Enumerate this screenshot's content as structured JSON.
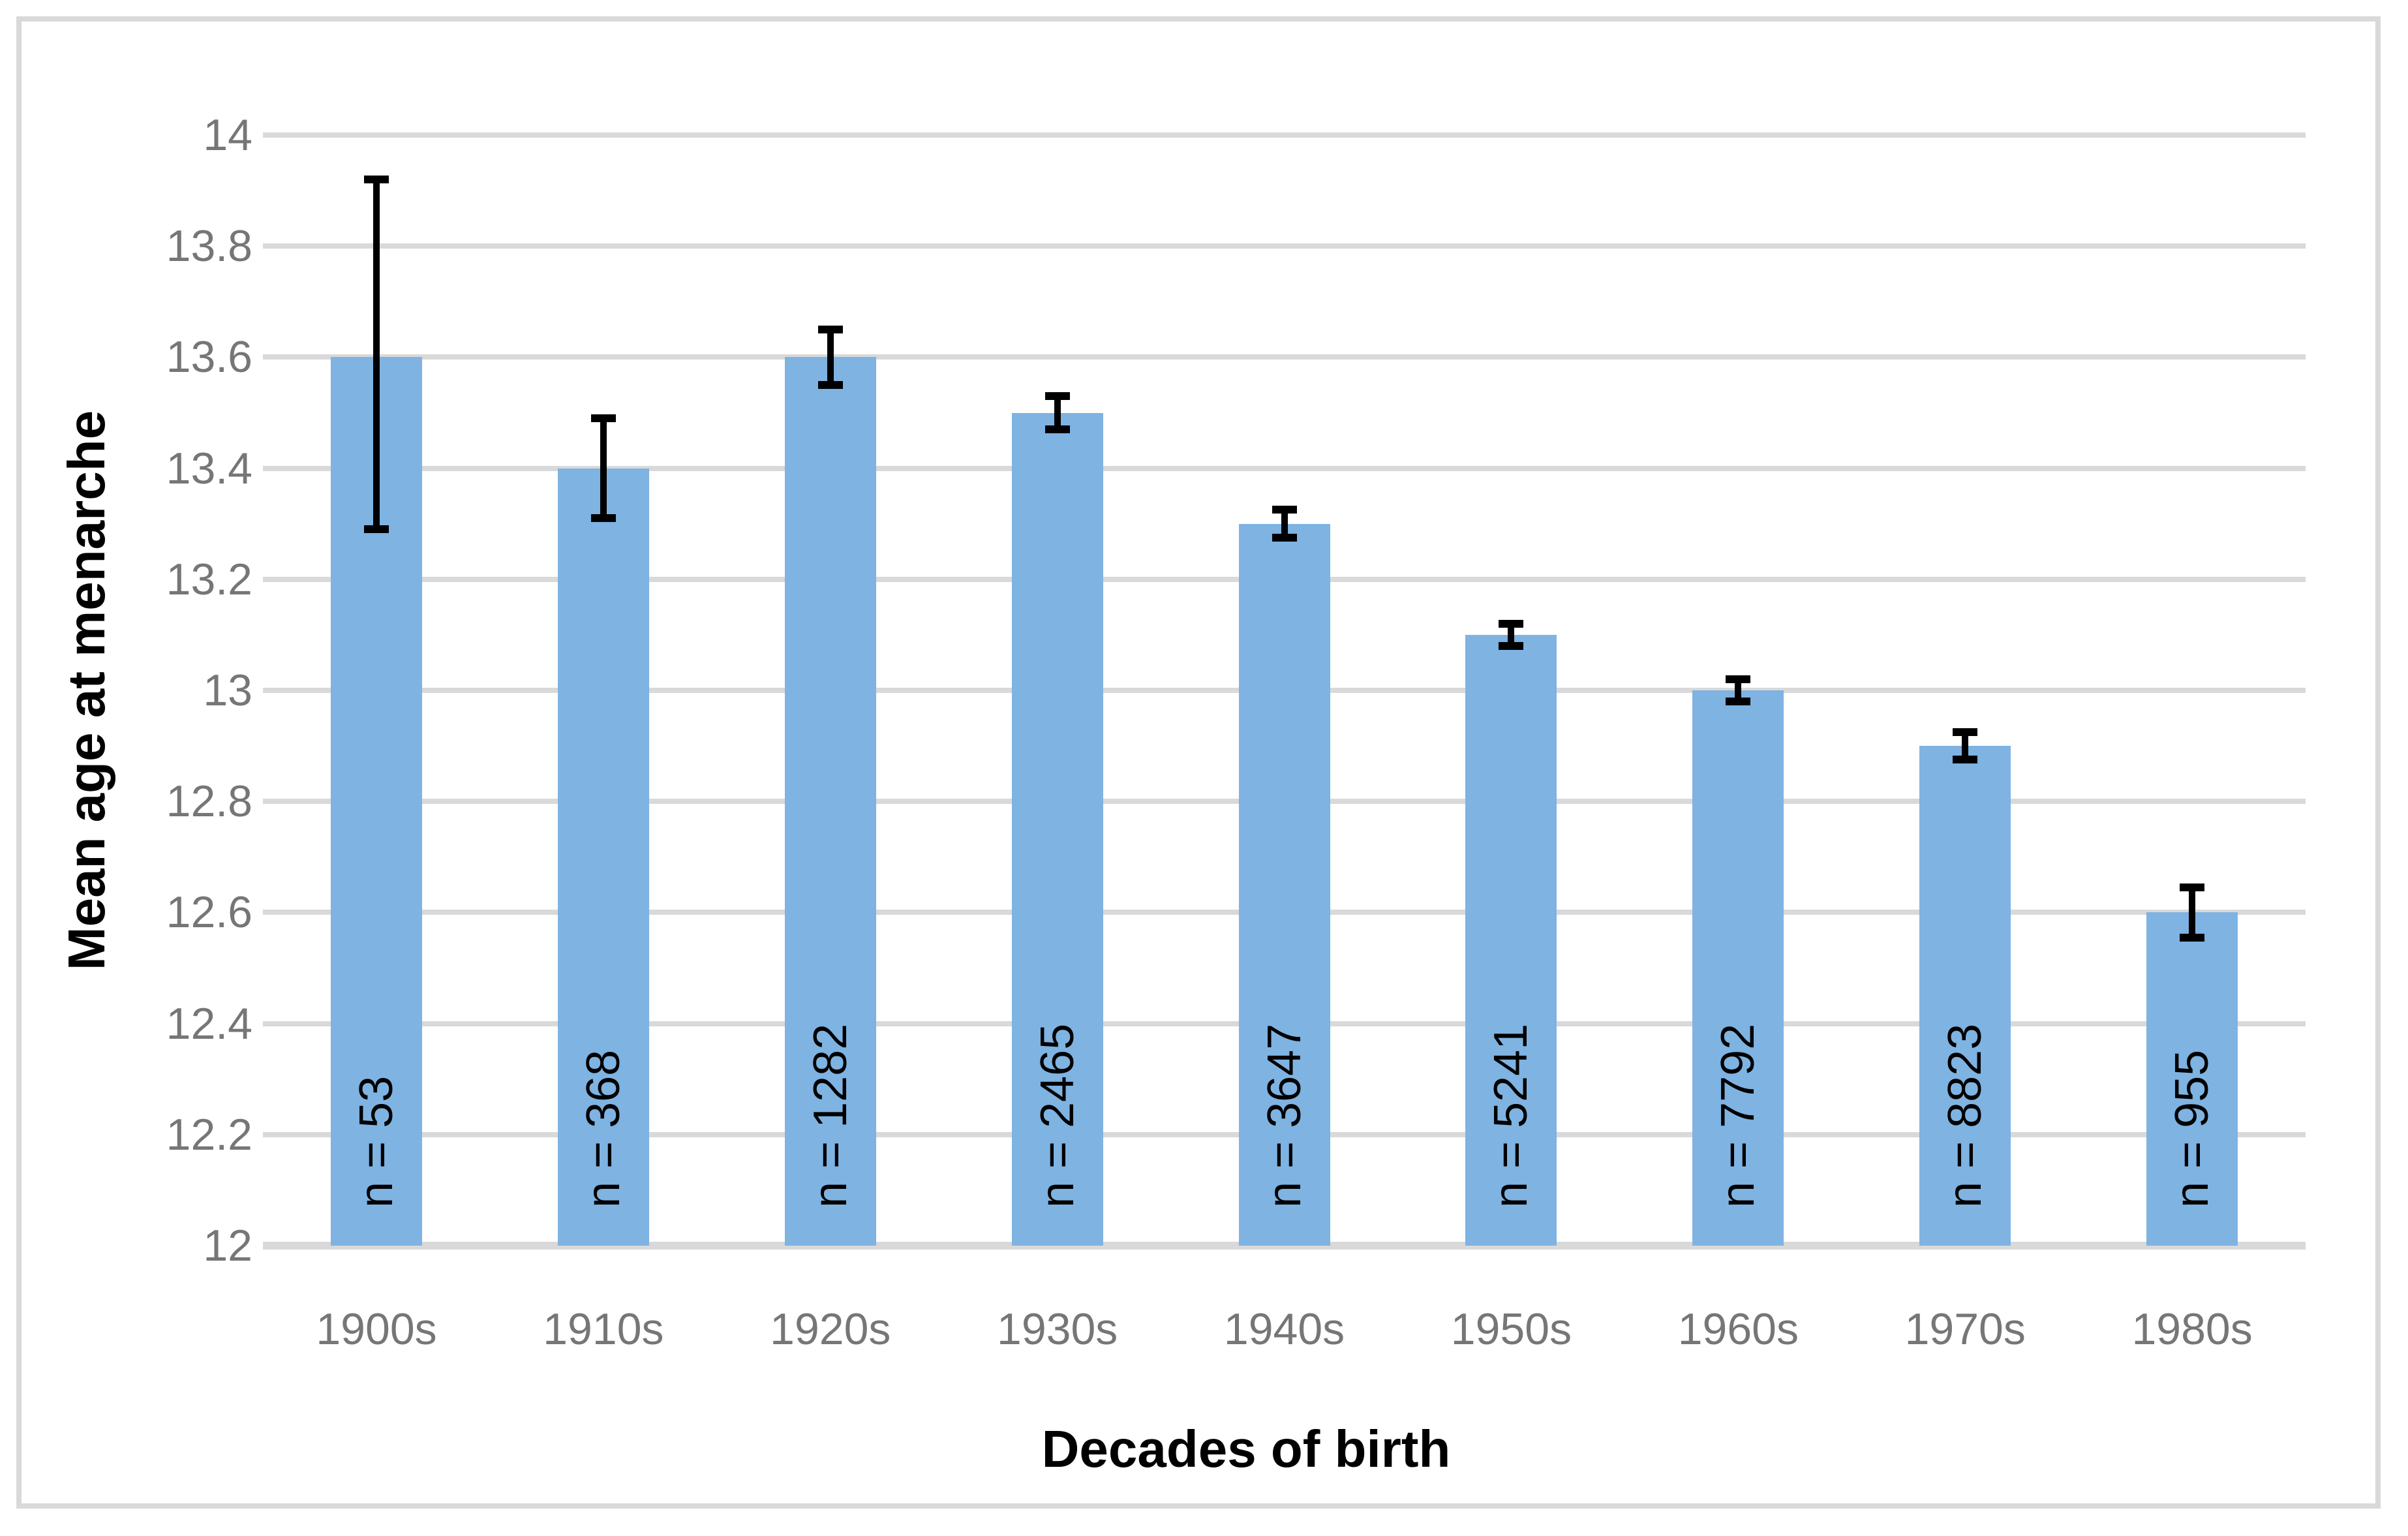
{
  "chart_data": {
    "type": "bar",
    "title": "",
    "xlabel": "Decades of birth",
    "ylabel": "Mean age at menarche",
    "categories": [
      "1900s",
      "1910s",
      "1920s",
      "1930s",
      "1940s",
      "1950s",
      "1960s",
      "1970s",
      "1980s"
    ],
    "values": [
      13.6,
      13.4,
      13.6,
      13.5,
      13.3,
      13.1,
      13.0,
      12.9,
      12.6
    ],
    "bar_labels": [
      "n = 53",
      "n = 368",
      "n = 1282",
      "n = 2465",
      "n = 3647",
      "n = 5241",
      "n = 7792",
      "n = 8823",
      "n = 955"
    ],
    "sample_sizes": [
      53,
      368,
      1282,
      2465,
      3647,
      5241,
      7792,
      8823,
      955
    ],
    "error_low": [
      13.29,
      13.31,
      13.55,
      13.47,
      13.275,
      13.08,
      12.98,
      12.875,
      12.555
    ],
    "error_high": [
      13.92,
      13.49,
      13.65,
      13.53,
      13.325,
      13.12,
      13.02,
      12.925,
      12.645
    ],
    "ylim": [
      12,
      14
    ],
    "ytick_step": 0.2,
    "ytick_labels": [
      "12",
      "12.2",
      "12.4",
      "12.6",
      "12.8",
      "13",
      "13.2",
      "13.4",
      "13.6",
      "13.8",
      "14"
    ],
    "grid": true,
    "legend_position": "none",
    "colors": {
      "bar_fill": "#7EB3E2",
      "gridline": "#D9D9D9",
      "axis_line": "#D9D9D9",
      "tick_label": "#767676",
      "error_bar": "#000000",
      "frame_border": "#D9D9D9",
      "background": "#FFFFFF"
    }
  }
}
